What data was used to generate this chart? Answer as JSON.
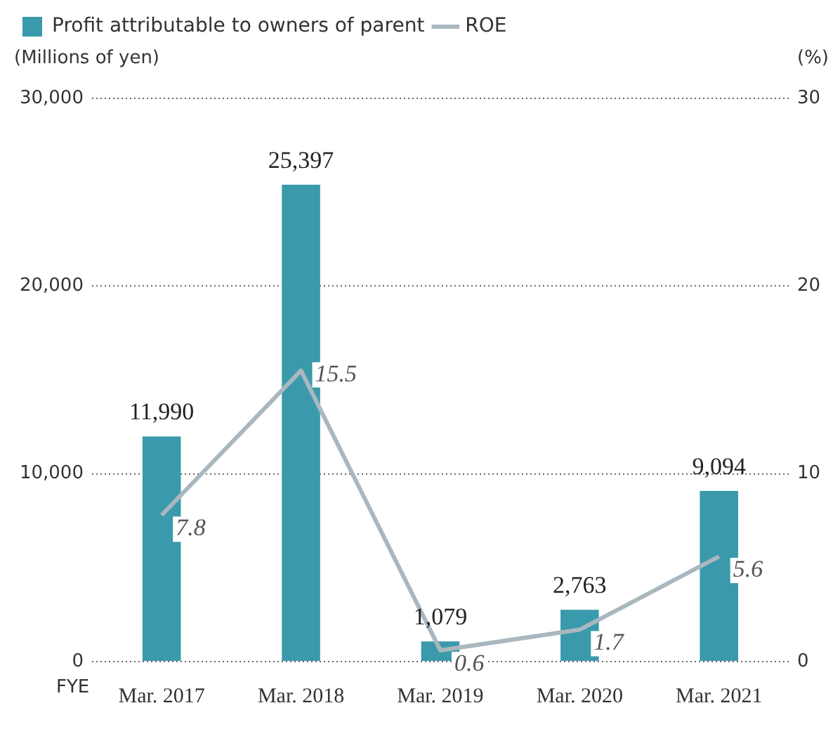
{
  "chart_data": {
    "type": "bar",
    "xlabel": "FYE",
    "ylabel": "(Millions of yen)",
    "y2label": "(%)",
    "categories": [
      "Mar. 2017",
      "Mar. 2018",
      "Mar. 2019",
      "Mar. 2020",
      "Mar. 2021"
    ],
    "series": [
      {
        "name": "Profit attributable to owners of parent",
        "color": "#3a9aab",
        "values": [
          11990,
          25397,
          1079,
          2763,
          9094
        ],
        "value_labels": [
          "11,990",
          "25,397",
          "1,079",
          "2,763",
          "9,094"
        ]
      },
      {
        "name": "ROE",
        "type": "line",
        "axis": "y2",
        "color": "#a9b7bf",
        "values": [
          7.8,
          15.5,
          0.6,
          1.7,
          5.6
        ],
        "value_labels": [
          "7.8",
          "15.5",
          "0.6",
          "1.7",
          "5.6"
        ]
      }
    ],
    "ylim": [
      0,
      30000
    ],
    "yticks": [
      0,
      {
        "value": 10000,
        "label": "10,000"
      },
      {
        "value": 20000,
        "label": "20,000"
      },
      {
        "value": 30000,
        "label": "30,000"
      }
    ],
    "y2lim": [
      0,
      30
    ],
    "y2ticks": [
      0,
      10,
      20,
      30
    ],
    "grid": "y",
    "legend": "top left",
    "marker": "none",
    "line_style": "solid"
  }
}
